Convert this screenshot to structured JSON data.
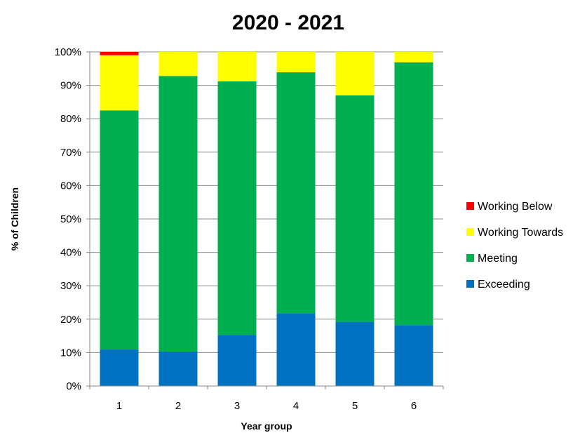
{
  "chart_data": {
    "type": "bar",
    "stacked": true,
    "title": "2020 - 2021",
    "xlabel": "Year group",
    "ylabel": "% of Children",
    "categories": [
      "1",
      "2",
      "3",
      "4",
      "5",
      "6"
    ],
    "ylim": [
      0,
      100
    ],
    "yticks": [
      0,
      10,
      20,
      30,
      40,
      50,
      60,
      70,
      80,
      90,
      100
    ],
    "ytick_labels": [
      "0%",
      "10%",
      "20%",
      "30%",
      "40%",
      "50%",
      "60%",
      "70%",
      "80%",
      "90%",
      "100%"
    ],
    "grid": true,
    "legend_position": "right",
    "series": [
      {
        "name": "Exceeding",
        "color": "#0070C0",
        "values": [
          11,
          10.3,
          15.3,
          21.8,
          19.2,
          18.2
        ]
      },
      {
        "name": "Meeting",
        "color": "#00B050",
        "values": [
          71.5,
          82.5,
          75.9,
          72.1,
          67.8,
          78.7
        ]
      },
      {
        "name": "Working Towards",
        "color": "#FFFF00",
        "values": [
          16.5,
          7.2,
          8.8,
          6.1,
          13,
          3.1
        ]
      },
      {
        "name": "Working Below",
        "color": "#FF0000",
        "values": [
          1,
          0,
          0,
          0,
          0,
          0
        ]
      }
    ]
  }
}
